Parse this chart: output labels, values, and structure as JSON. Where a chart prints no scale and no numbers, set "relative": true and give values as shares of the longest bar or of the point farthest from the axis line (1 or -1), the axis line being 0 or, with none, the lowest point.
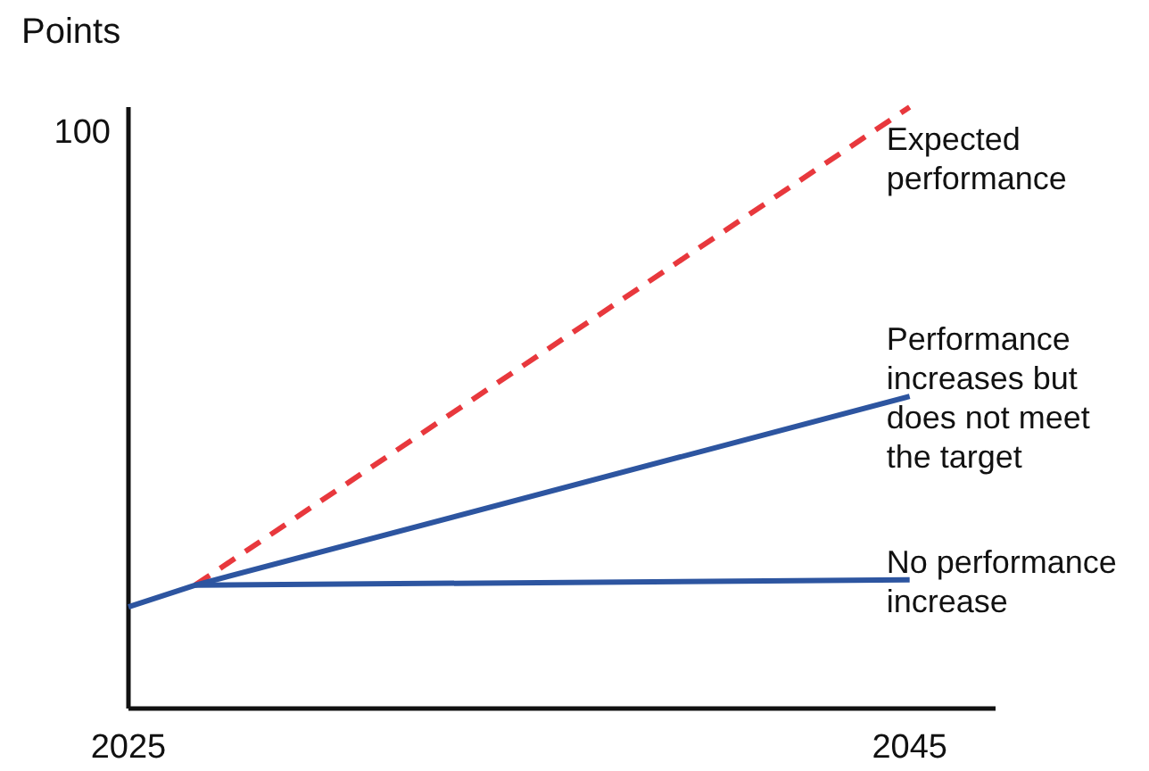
{
  "chart_data": {
    "type": "line",
    "ylabel": "Points",
    "relative": true,
    "xlim": [
      2025,
      2047.2
    ],
    "xticks": [
      2025,
      2045
    ],
    "grid": false,
    "marker": "none",
    "annotations": [
      "100"
    ],
    "series": [
      {
        "name": "Expected performance",
        "color": "#e8383d",
        "line_style": "dashed",
        "x": [
          2026.7,
          2045
        ],
        "values": [
          0.205,
          1
        ]
      },
      {
        "name": "Performance increases but does not meet the target",
        "color": "#2d55a0",
        "line_style": "solid",
        "x": [
          2025,
          2026.7,
          2045
        ],
        "values": [
          0.169,
          0.205,
          0.519
        ]
      },
      {
        "name": "No performance increase",
        "color": "#2d55a0",
        "line_style": "solid",
        "x": [
          2026.7,
          2045
        ],
        "values": [
          0.205,
          0.214
        ]
      }
    ]
  }
}
